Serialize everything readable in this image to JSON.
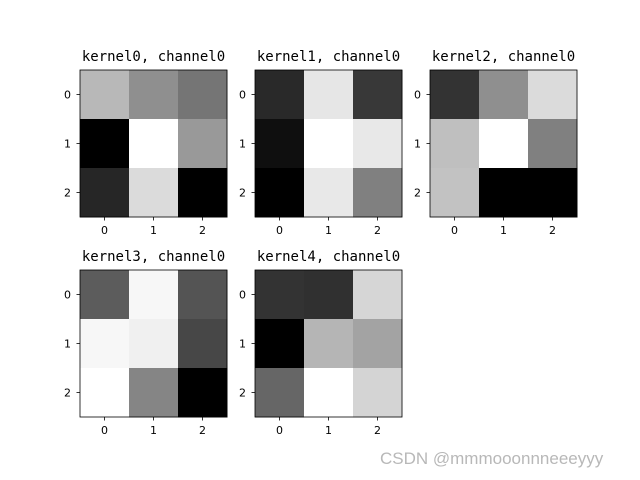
{
  "chart_data": [
    {
      "type": "heatmap",
      "title": "kernel0, channel0",
      "x_ticks": [
        "0",
        "1",
        "2"
      ],
      "y_ticks": [
        "0",
        "1",
        "2"
      ],
      "colormap": "gray",
      "values": [
        [
          0.72,
          0.56,
          0.46
        ],
        [
          0.0,
          1.0,
          0.6
        ],
        [
          0.15,
          0.86,
          0.0
        ]
      ]
    },
    {
      "type": "heatmap",
      "title": "kernel1, channel0",
      "x_ticks": [
        "0",
        "1",
        "2"
      ],
      "y_ticks": [
        "0",
        "1",
        "2"
      ],
      "colormap": "gray",
      "values": [
        [
          0.16,
          0.9,
          0.22
        ],
        [
          0.06,
          1.0,
          0.91
        ],
        [
          0.0,
          0.91,
          0.5
        ]
      ]
    },
    {
      "type": "heatmap",
      "title": "kernel2, channel0",
      "x_ticks": [
        "0",
        "1",
        "2"
      ],
      "y_ticks": [
        "0",
        "1",
        "2"
      ],
      "colormap": "gray",
      "values": [
        [
          0.2,
          0.56,
          0.86
        ],
        [
          0.75,
          1.0,
          0.5
        ],
        [
          0.76,
          0.0,
          0.0
        ]
      ]
    },
    {
      "type": "heatmap",
      "title": "kernel3, channel0",
      "x_ticks": [
        "0",
        "1",
        "2"
      ],
      "y_ticks": [
        "0",
        "1",
        "2"
      ],
      "colormap": "gray",
      "values": [
        [
          0.36,
          0.97,
          0.33
        ],
        [
          0.97,
          0.94,
          0.28
        ],
        [
          1.0,
          0.52,
          0.0
        ]
      ]
    },
    {
      "type": "heatmap",
      "title": "kernel4, channel0",
      "x_ticks": [
        "0",
        "1",
        "2"
      ],
      "y_ticks": [
        "0",
        "1",
        "2"
      ],
      "colormap": "gray",
      "values": [
        [
          0.2,
          0.19,
          0.84
        ],
        [
          0.0,
          0.71,
          0.64
        ],
        [
          0.4,
          1.0,
          0.83
        ]
      ]
    }
  ],
  "watermark": "CSDN @mmmooonnneeeyyy"
}
